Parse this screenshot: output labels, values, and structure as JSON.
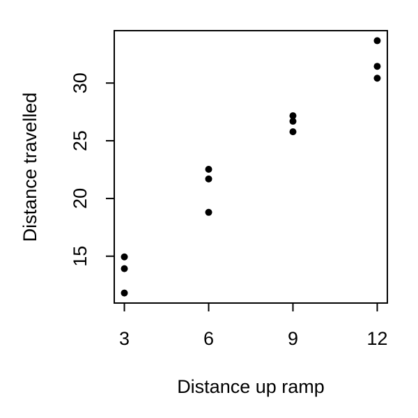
{
  "chart_data": {
    "type": "scatter",
    "x_label": "Distance up ramp",
    "y_label": "Distance travelled",
    "x": [
      3,
      3,
      3,
      6,
      6,
      6,
      9,
      9,
      9,
      12,
      12,
      12
    ],
    "values": [
      14.94,
      13.92,
      11.81,
      22.53,
      21.69,
      18.8,
      27.17,
      26.69,
      25.78,
      33.67,
      31.45,
      30.42
    ],
    "color": "#000000",
    "xlim": [
      2.64,
      12.36
    ],
    "xticks": [
      3,
      6,
      9,
      12
    ],
    "ylim": [
      10.94,
      34.54
    ],
    "yticks": [
      15,
      20,
      25,
      30
    ]
  }
}
